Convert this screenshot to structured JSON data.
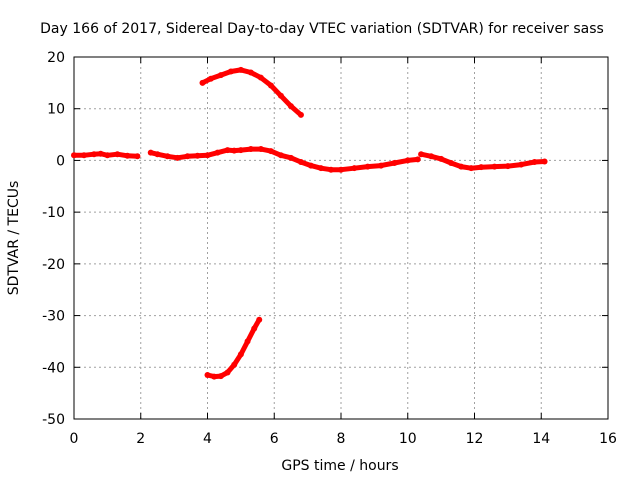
{
  "chart_data": {
    "type": "scatter",
    "title": "Day 166 of 2017, Sidereal Day-to-day VTEC variation (SDTVAR) for receiver sass",
    "xlabel": "GPS time / hours",
    "ylabel": "SDTVAR / TECUs",
    "xlim": [
      0,
      16
    ],
    "ylim": [
      -50,
      20
    ],
    "xticks": [
      0,
      2,
      4,
      6,
      8,
      10,
      12,
      14,
      16
    ],
    "yticks": [
      20,
      10,
      0,
      -10,
      -20,
      -30,
      -40,
      -50
    ],
    "grid": true,
    "color": "#ff0000",
    "series": [
      {
        "name": "main-track-part1",
        "x": [
          0.0,
          0.3,
          0.6,
          0.8,
          1.0,
          1.3,
          1.6,
          1.9
        ],
        "y": [
          1.0,
          1.0,
          1.2,
          1.3,
          1.0,
          1.2,
          0.9,
          0.8
        ]
      },
      {
        "name": "main-track-part2",
        "x": [
          2.3,
          2.5,
          2.8,
          3.1,
          3.4,
          3.7,
          4.0,
          4.3,
          4.6,
          4.8,
          5.0,
          5.3,
          5.6,
          5.9,
          6.2,
          6.5,
          6.8,
          7.1,
          7.4,
          7.7,
          8.0,
          8.4,
          8.8,
          9.2,
          9.6,
          10.0,
          10.3
        ],
        "y": [
          1.5,
          1.2,
          0.8,
          0.5,
          0.8,
          0.9,
          1.0,
          1.5,
          2.0,
          1.9,
          2.0,
          2.2,
          2.2,
          1.8,
          1.0,
          0.5,
          -0.3,
          -1.0,
          -1.5,
          -1.8,
          -1.8,
          -1.5,
          -1.2,
          -1.0,
          -0.5,
          0.0,
          0.2
        ]
      },
      {
        "name": "main-track-part3",
        "x": [
          10.4,
          10.7,
          11.0,
          11.3,
          11.6,
          11.9,
          12.2,
          12.6,
          13.0,
          13.4,
          13.8,
          14.1
        ],
        "y": [
          1.2,
          0.8,
          0.3,
          -0.5,
          -1.2,
          -1.5,
          -1.3,
          -1.2,
          -1.1,
          -0.8,
          -0.3,
          -0.2
        ]
      },
      {
        "name": "upper-arc",
        "x": [
          3.85,
          4.1,
          4.4,
          4.7,
          5.0,
          5.3,
          5.6,
          5.9,
          6.2,
          6.5,
          6.8
        ],
        "y": [
          15.0,
          15.8,
          16.5,
          17.2,
          17.5,
          17.0,
          16.0,
          14.5,
          12.5,
          10.5,
          8.8
        ]
      },
      {
        "name": "lower-arc",
        "x": [
          4.0,
          4.2,
          4.4,
          4.6,
          4.8,
          5.0,
          5.2,
          5.4,
          5.55
        ],
        "y": [
          -41.5,
          -41.8,
          -41.7,
          -41.0,
          -39.5,
          -37.5,
          -35.0,
          -32.5,
          -30.8
        ]
      }
    ]
  }
}
